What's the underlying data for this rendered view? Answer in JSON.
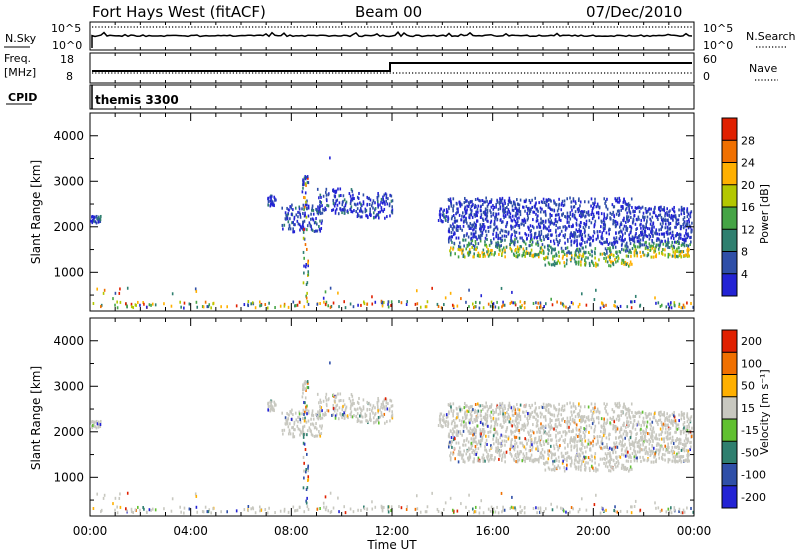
{
  "header": {
    "station": "Fort Hays West (fitACF)",
    "beam": "Beam 00",
    "date": "07/Dec/2010"
  },
  "status_panel": {
    "nsky_label": "N.Sky",
    "nsky_ticks": [
      "10^5",
      "10^0"
    ],
    "nsearch_label": "N.Search",
    "nsearch_ticks": [
      "10^5",
      "10^0"
    ],
    "freq_label_1": "Freq.",
    "freq_label_2": "[MHz]",
    "freq_ticks": [
      "18",
      "8"
    ],
    "nave_label": "Nave",
    "nave_ticks": [
      "60",
      "0"
    ],
    "cpid_label": "CPID",
    "cpid_value": "themis 3300",
    "freq_step_hours": 12.0
  },
  "chart_data": [
    {
      "type": "heatmap",
      "title": "",
      "xlabel": "Time UT",
      "ylabel": "Slant Range [km]",
      "xlim": [
        0,
        24
      ],
      "ylim": [
        150,
        4500
      ],
      "x_ticks": [
        "00:00",
        "04:00",
        "08:00",
        "12:00",
        "16:00",
        "20:00",
        "00:00"
      ],
      "y_ticks": [
        "1000",
        "2000",
        "3000",
        "4000"
      ],
      "colorbar": {
        "label": "Power [dB]",
        "range": [
          0,
          32
        ],
        "tick_values": [
          4,
          8,
          12,
          16,
          20,
          24,
          28
        ],
        "tick_labels": [
          "4",
          "8",
          "12",
          "16",
          "20",
          "24",
          "28"
        ],
        "colors": [
          "#2323d4",
          "#2f4fa8",
          "#2f7f6f",
          "#45a445",
          "#b3c700",
          "#ffb000",
          "#f07000",
          "#e02000"
        ]
      },
      "scatter_regions": [
        {
          "t": [
            0.0,
            0.4
          ],
          "r": [
            2050,
            2200
          ]
        },
        {
          "t": [
            7.0,
            7.4
          ],
          "r": [
            2400,
            2650
          ]
        },
        {
          "t": [
            7.6,
            9.2
          ],
          "r": [
            1850,
            2450
          ]
        },
        {
          "t": [
            8.4,
            8.6
          ],
          "r": [
            2600,
            3100
          ]
        },
        {
          "t": [
            9.0,
            10.4
          ],
          "r": [
            2250,
            2800
          ]
        },
        {
          "t": [
            10.4,
            12.0
          ],
          "r": [
            2150,
            2700
          ]
        },
        {
          "t": [
            13.8,
            14.2
          ],
          "r": [
            2050,
            2400
          ]
        },
        {
          "t": [
            14.2,
            18.0
          ],
          "r": [
            1300,
            2600
          ]
        },
        {
          "t": [
            18.0,
            21.5
          ],
          "r": [
            1100,
            2600
          ]
        },
        {
          "t": [
            21.5,
            23.9
          ],
          "r": [
            1300,
            2400
          ]
        }
      ]
    },
    {
      "type": "heatmap",
      "title": "",
      "xlabel": "Time UT",
      "ylabel": "Slant Range [km]",
      "xlim": [
        0,
        24
      ],
      "ylim": [
        150,
        4500
      ],
      "x_ticks": [
        "00:00",
        "04:00",
        "08:00",
        "12:00",
        "16:00",
        "20:00",
        "00:00"
      ],
      "y_ticks": [
        "1000",
        "2000",
        "3000",
        "4000"
      ],
      "colorbar": {
        "label": "Velocity [m s⁻¹]",
        "tick_labels": [
          "200",
          "100",
          "50",
          "15",
          "-15",
          "-50",
          "-100",
          "-200"
        ],
        "colors": [
          "#2323d4",
          "#2f4fa8",
          "#2f7f6f",
          "#60c030",
          "#c8c8c0",
          "#ffb000",
          "#f07000",
          "#e02000"
        ]
      },
      "ground_scatter_color": "#c8c8c0"
    }
  ]
}
